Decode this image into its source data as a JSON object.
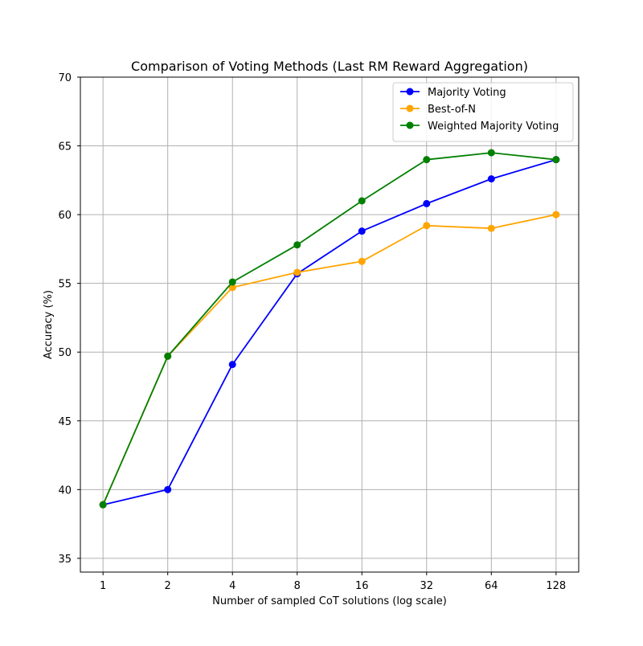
{
  "chart_data": {
    "type": "line",
    "title": "Comparison of Voting Methods (Last RM Reward Aggregation)",
    "xlabel": "Number of sampled CoT solutions (log scale)",
    "ylabel": "Accuracy (%)",
    "x_scale": "log2",
    "x": [
      1,
      2,
      4,
      8,
      16,
      32,
      64,
      128
    ],
    "x_tick_labels": [
      "1",
      "2",
      "4",
      "8",
      "16",
      "32",
      "64",
      "128"
    ],
    "ylim": [
      34,
      70
    ],
    "y_ticks": [
      35,
      40,
      45,
      50,
      55,
      60,
      65,
      70
    ],
    "y_tick_labels": [
      "35",
      "40",
      "45",
      "50",
      "55",
      "60",
      "65",
      "70"
    ],
    "grid": true,
    "legend_position": "top-right",
    "series": [
      {
        "name": "Majority Voting",
        "color": "#0000ff",
        "values": [
          38.9,
          40.0,
          49.1,
          55.7,
          58.8,
          60.8,
          62.6,
          64.0
        ]
      },
      {
        "name": "Best-of-N",
        "color": "#ffa500",
        "values": [
          38.9,
          49.7,
          54.7,
          55.8,
          56.6,
          59.2,
          59.0,
          60.0
        ]
      },
      {
        "name": "Weighted Majority Voting",
        "color": "#008000",
        "values": [
          38.9,
          49.7,
          55.1,
          57.8,
          61.0,
          64.0,
          64.5,
          64.0
        ]
      }
    ]
  }
}
